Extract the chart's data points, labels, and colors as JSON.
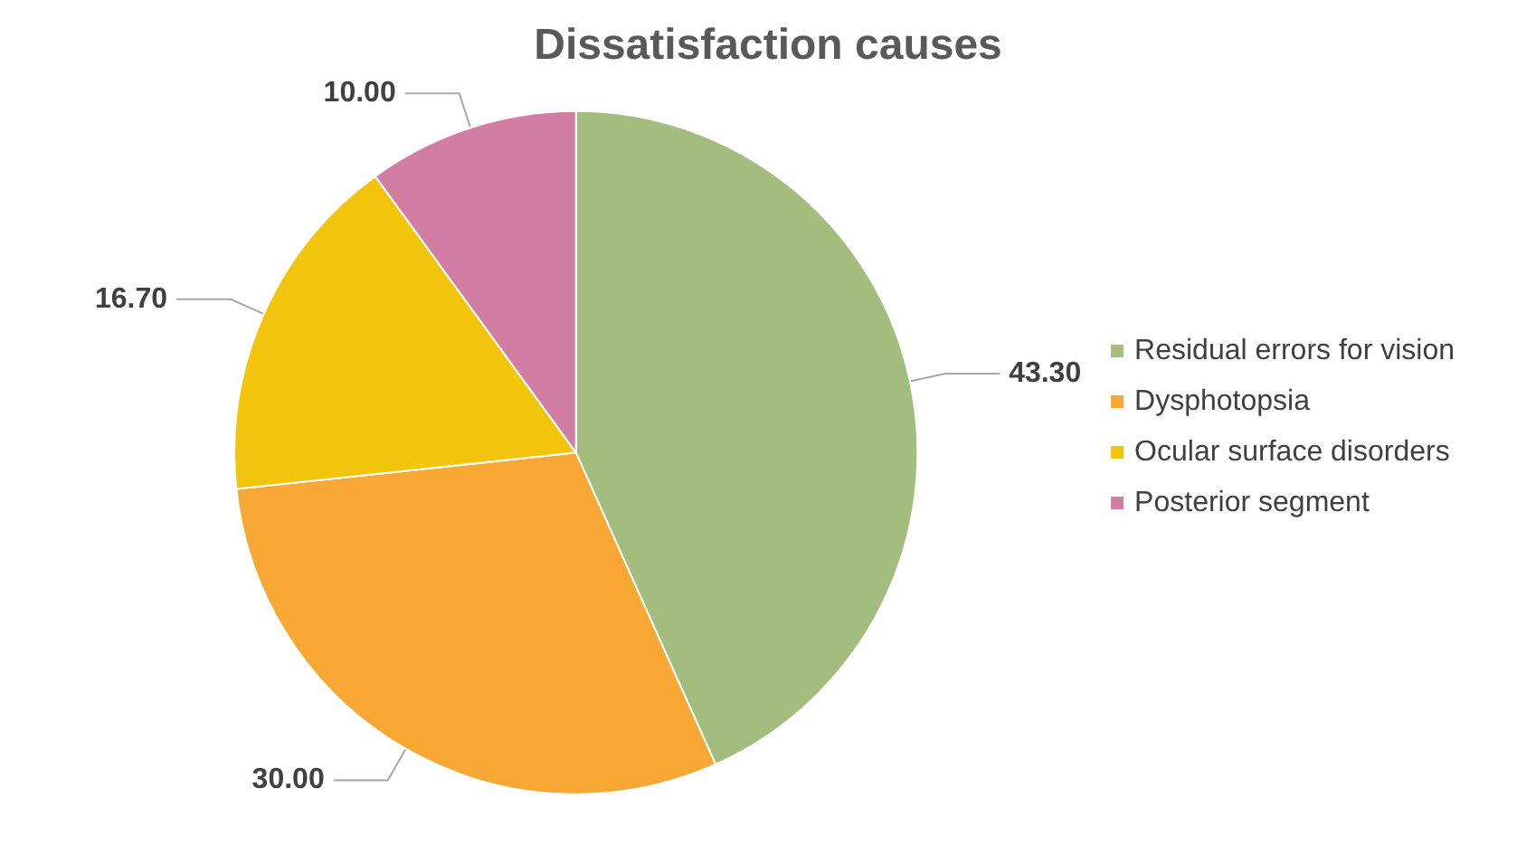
{
  "chart_data": {
    "type": "pie",
    "title": "Dissatisfaction causes",
    "categories": [
      "Residual errors for vision",
      "Dysphotopsia",
      "Ocular surface disorders",
      "Posterior segment"
    ],
    "values": [
      43.3,
      30.0,
      16.7,
      10.0
    ],
    "value_labels": [
      "43.30",
      "30.00",
      "16.70",
      "10.00"
    ],
    "colors": [
      "#a3bd7f",
      "#f7a734",
      "#f3c40c",
      "#d27ea3"
    ],
    "legend": "right"
  }
}
